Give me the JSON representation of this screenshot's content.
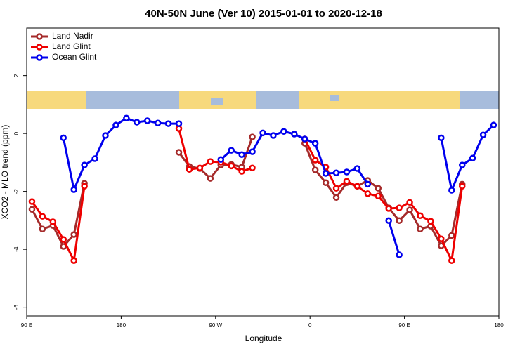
{
  "chart_data": {
    "type": "line",
    "title": "40N-50N June (Ver 10)   2015-01-01 to 2020-12-18",
    "x_label": "Longitude",
    "y_label": "XCO2 - MLO trend (ppm)",
    "x": [
      95,
      105,
      115,
      125,
      135,
      145,
      155,
      165,
      175,
      185,
      195,
      205,
      215,
      225,
      235,
      245,
      255,
      265,
      275,
      285,
      295,
      305,
      315,
      325,
      335,
      345,
      355,
      365,
      375,
      385,
      395,
      405,
      415,
      425,
      435,
      445,
      455,
      465,
      475,
      485,
      495,
      505,
      515,
      525,
      535
    ],
    "series": [
      {
        "name": "Land Nadir",
        "color": "#a52a2a",
        "values": [
          -2.62,
          -3.3,
          -3.18,
          -3.9,
          -3.49,
          -1.72,
          null,
          null,
          null,
          null,
          null,
          null,
          null,
          null,
          -0.65,
          -1.14,
          -1.21,
          -1.55,
          -1.09,
          -1.07,
          -1.16,
          -0.12,
          null,
          null,
          null,
          null,
          -0.34,
          -1.26,
          -1.7,
          -2.21,
          -1.7,
          -1.82,
          -1.62,
          -1.89,
          -2.57,
          -3.01,
          -2.64,
          -3.3,
          -3.2,
          -3.88,
          -3.52,
          -1.75,
          null,
          null,
          null
        ]
      },
      {
        "name": "Land Glint",
        "color": "#ee0000",
        "values": [
          -2.35,
          -2.86,
          -3.05,
          -3.66,
          -4.39,
          -1.82,
          null,
          null,
          null,
          null,
          null,
          null,
          null,
          null,
          0.17,
          -1.24,
          -1.19,
          -0.97,
          -0.99,
          -1.12,
          -1.31,
          -1.19,
          null,
          null,
          null,
          null,
          -0.19,
          -0.92,
          -1.16,
          -1.89,
          -1.65,
          -1.82,
          -2.08,
          -2.16,
          -2.59,
          -2.57,
          -2.38,
          -2.84,
          -3.03,
          -3.64,
          -4.39,
          -1.82,
          null,
          null,
          null
        ]
      },
      {
        "name": "Ocean Glint",
        "color": "#0000ee",
        "values": [
          null,
          null,
          null,
          -0.15,
          -1.94,
          -1.09,
          -0.87,
          -0.07,
          0.29,
          0.53,
          0.39,
          0.44,
          0.36,
          0.34,
          0.34,
          null,
          null,
          null,
          -0.9,
          -0.58,
          -0.73,
          -0.63,
          0.02,
          -0.07,
          0.07,
          -0.02,
          -0.19,
          -0.34,
          -1.38,
          -1.36,
          -1.33,
          -1.21,
          -1.75,
          null,
          -3.01,
          -4.19,
          null,
          null,
          null,
          -0.15,
          -1.96,
          -1.09,
          -0.85,
          -0.05,
          0.29
        ]
      }
    ],
    "xlim": [
      90,
      540
    ],
    "xticks": [
      {
        "value": 90,
        "label": "90 E"
      },
      180,
      {
        "value": 270,
        "label": "90 W"
      },
      {
        "value": 360,
        "label": "0"
      },
      {
        "value": 450,
        "label": "90 E"
      },
      {
        "value": 540,
        "label": "180"
      }
    ],
    "ylim": [
      -6.3,
      3.64
    ],
    "yticks": [
      -6,
      -4,
      -2,
      0,
      2
    ],
    "legend": "top-left"
  }
}
